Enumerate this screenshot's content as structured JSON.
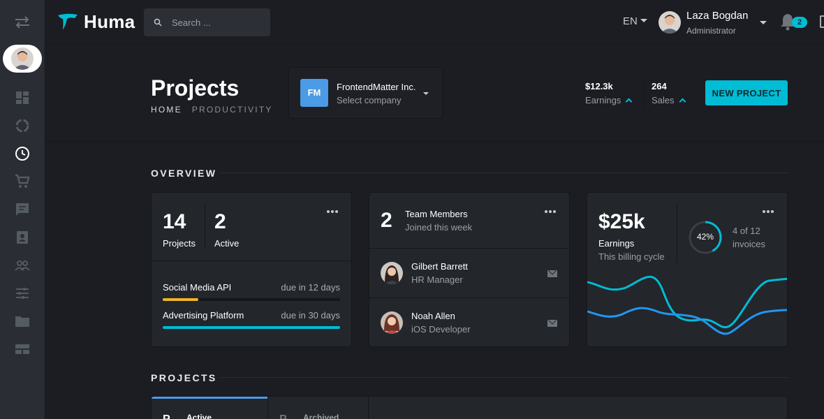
{
  "app": {
    "brand": "Huma"
  },
  "search": {
    "placeholder": "Search ..."
  },
  "topbar": {
    "language": "EN",
    "user_name": "Laza Bogdan",
    "user_role": "Administrator",
    "notification_count": "2"
  },
  "header": {
    "title": "Projects",
    "breadcrumb": [
      "HOME",
      "PRODUCTIVITY"
    ],
    "company": {
      "initials": "FM",
      "name": "FrontendMatter Inc.",
      "subtitle": "Select company"
    },
    "stats": [
      {
        "value": "$12.3k",
        "label": "Earnings"
      },
      {
        "value": "264",
        "label": "Sales"
      }
    ],
    "new_project_label": "NEW PROJECT"
  },
  "overview": {
    "title": "OVERVIEW",
    "projects_card": {
      "projects_count": "14",
      "projects_label": "Projects",
      "active_count": "2",
      "active_label": "Active",
      "tasks": [
        {
          "name": "Social Media API",
          "due": "due in 12 days",
          "progress": 0.2,
          "color": "#f0b429"
        },
        {
          "name": "Advertising Platform",
          "due": "due in 30 days",
          "progress": 1.0,
          "color": "#00bcd4"
        }
      ]
    },
    "team_card": {
      "count": "2",
      "title": "Team Members",
      "subtitle": "Joined this week",
      "members": [
        {
          "name": "Gilbert Barrett",
          "role": "HR Manager"
        },
        {
          "name": "Noah Allen",
          "role": "iOS Developer"
        }
      ]
    },
    "earnings_card": {
      "value": "$25k",
      "label": "Earnings",
      "sub": "This billing cycle",
      "percent": "42%",
      "percent_value": 42,
      "invoices_line1": "4 of 12",
      "invoices_line2": "invoices"
    }
  },
  "projects_section": {
    "title": "PROJECTS",
    "tabs": [
      {
        "letter": "P",
        "label": "Active",
        "active": true
      },
      {
        "letter": "P",
        "label": "Archived",
        "active": false
      }
    ]
  },
  "colors": {
    "accent": "#00bcd4",
    "blue": "#2196f3",
    "warning": "#f0b429",
    "company_tile": "#4b9be6"
  },
  "icons": {
    "rail": [
      "swap-icon",
      "dashboard-icon",
      "circle-progress-icon",
      "clock-icon",
      "cart-icon",
      "chat-icon",
      "contact-icon",
      "people-icon",
      "sliders-icon",
      "folder-icon",
      "view-stream-icon"
    ]
  }
}
